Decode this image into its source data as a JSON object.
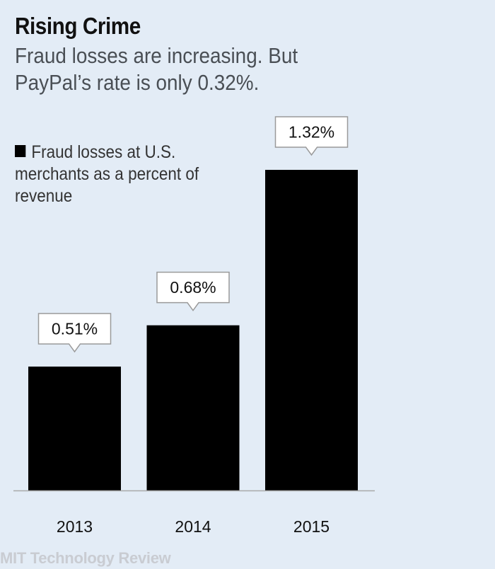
{
  "title": "Rising Crime",
  "subtitle": "Fraud losses are increasing. But PayPal’s rate is only 0.32%.",
  "legend": {
    "label": "Fraud losses at U.S. merchants as a percent of revenue",
    "color": "#000000"
  },
  "source": "MIT Technology Review",
  "colors": {
    "background": "#e3ecf6",
    "bar": "#000000",
    "callout_fill": "#ffffff",
    "callout_stroke": "#9a9a9a",
    "axis": "#a9a9a9"
  },
  "chart_data": {
    "type": "bar",
    "categories": [
      "2013",
      "2014",
      "2015"
    ],
    "values": [
      0.51,
      0.68,
      1.32
    ],
    "data_labels": [
      "0.51%",
      "0.68%",
      "1.32%"
    ],
    "series": [
      {
        "name": "Fraud losses at U.S. merchants as a percent of revenue",
        "values": [
          0.51,
          0.68,
          1.32
        ]
      }
    ],
    "title": "Rising Crime",
    "ylim": [
      0,
      1.32
    ],
    "grid": false,
    "legend_position": "top-left"
  }
}
